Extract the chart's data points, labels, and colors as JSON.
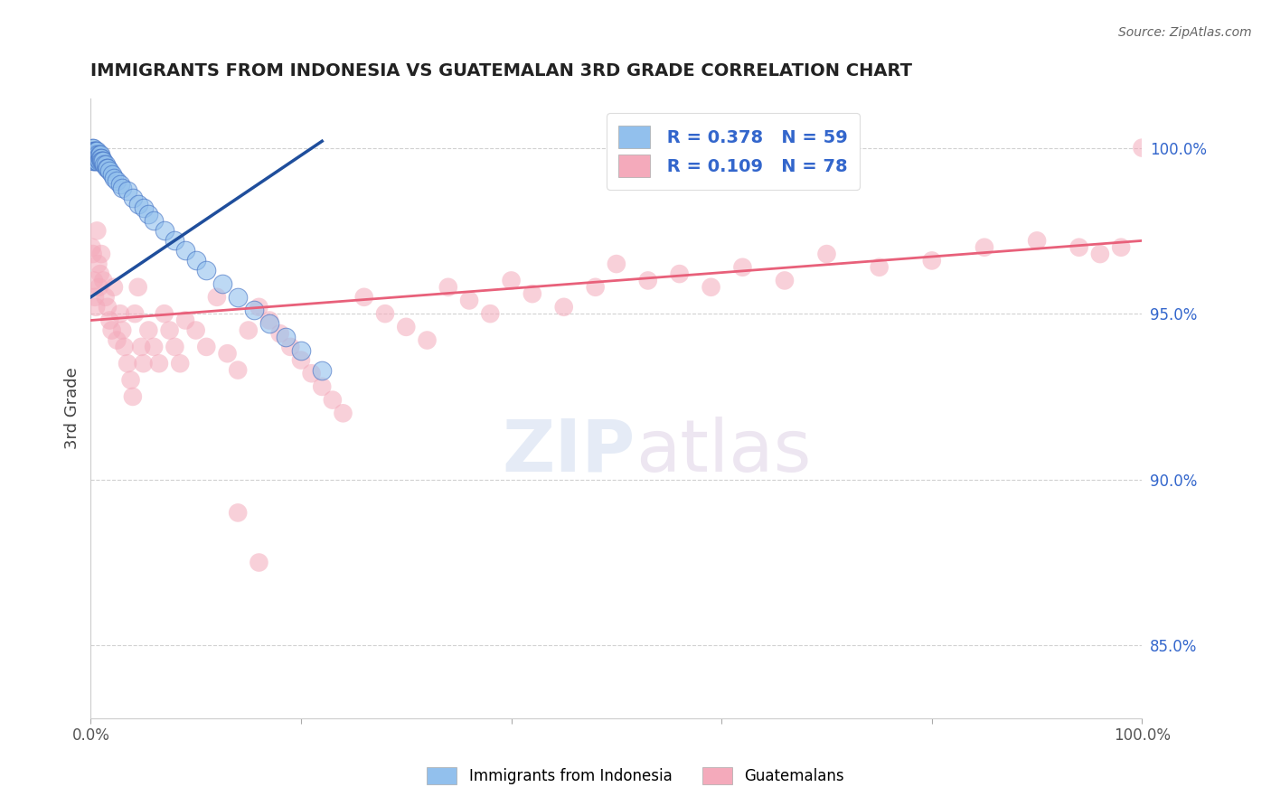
{
  "title": "IMMIGRANTS FROM INDONESIA VS GUATEMALAN 3RD GRADE CORRELATION CHART",
  "source": "Source: ZipAtlas.com",
  "ylabel": "3rd Grade",
  "xlim": [
    0,
    1.0
  ],
  "ylim": [
    0.828,
    1.015
  ],
  "xticks": [
    0.0,
    0.2,
    0.4,
    0.6,
    0.8,
    1.0
  ],
  "xticklabels": [
    "0.0%",
    "",
    "",
    "",
    "",
    "100.0%"
  ],
  "yticks": [
    0.85,
    0.9,
    0.95,
    1.0
  ],
  "yticklabels": [
    "85.0%",
    "90.0%",
    "95.0%",
    "100.0%"
  ],
  "legend_r1": "R = 0.378",
  "legend_n1": "N = 59",
  "legend_r2": "R = 0.109",
  "legend_n2": "N = 78",
  "color_blue": "#92C0ED",
  "color_blue_dark": "#4472C4",
  "color_blue_line": "#1F4E9C",
  "color_pink": "#F4AABB",
  "color_pink_line": "#E8607A",
  "color_grid": "#CCCCCC",
  "color_legend_text": "#3366CC",
  "legend_label1": "Immigrants from Indonesia",
  "legend_label2": "Guatemalans",
  "indo_x": [
    0.001,
    0.001,
    0.001,
    0.002,
    0.002,
    0.002,
    0.002,
    0.002,
    0.003,
    0.003,
    0.003,
    0.003,
    0.004,
    0.004,
    0.004,
    0.005,
    0.005,
    0.005,
    0.006,
    0.006,
    0.006,
    0.007,
    0.007,
    0.008,
    0.008,
    0.009,
    0.009,
    0.01,
    0.01,
    0.011,
    0.012,
    0.013,
    0.014,
    0.015,
    0.016,
    0.018,
    0.02,
    0.022,
    0.025,
    0.028,
    0.03,
    0.035,
    0.04,
    0.045,
    0.05,
    0.055,
    0.06,
    0.07,
    0.08,
    0.09,
    0.1,
    0.11,
    0.125,
    0.14,
    0.155,
    0.17,
    0.185,
    0.2,
    0.22
  ],
  "indo_y": [
    0.998,
    0.997,
    1.0,
    0.999,
    0.998,
    0.997,
    0.996,
    1.0,
    0.999,
    0.998,
    0.997,
    0.996,
    0.999,
    0.998,
    0.997,
    0.999,
    0.998,
    0.996,
    0.999,
    0.997,
    0.996,
    0.998,
    0.997,
    0.998,
    0.996,
    0.998,
    0.997,
    0.997,
    0.996,
    0.996,
    0.996,
    0.995,
    0.995,
    0.994,
    0.994,
    0.993,
    0.992,
    0.991,
    0.99,
    0.989,
    0.988,
    0.987,
    0.985,
    0.983,
    0.982,
    0.98,
    0.978,
    0.975,
    0.972,
    0.969,
    0.966,
    0.963,
    0.959,
    0.955,
    0.951,
    0.947,
    0.943,
    0.939,
    0.933
  ],
  "guat_x": [
    0.001,
    0.002,
    0.003,
    0.004,
    0.005,
    0.006,
    0.007,
    0.008,
    0.009,
    0.01,
    0.012,
    0.014,
    0.016,
    0.018,
    0.02,
    0.022,
    0.025,
    0.028,
    0.03,
    0.032,
    0.035,
    0.038,
    0.04,
    0.042,
    0.045,
    0.048,
    0.05,
    0.055,
    0.06,
    0.065,
    0.07,
    0.075,
    0.08,
    0.085,
    0.09,
    0.1,
    0.11,
    0.12,
    0.13,
    0.14,
    0.15,
    0.16,
    0.17,
    0.18,
    0.19,
    0.2,
    0.21,
    0.22,
    0.23,
    0.24,
    0.26,
    0.28,
    0.3,
    0.32,
    0.34,
    0.36,
    0.38,
    0.4,
    0.42,
    0.45,
    0.48,
    0.5,
    0.53,
    0.56,
    0.59,
    0.62,
    0.66,
    0.7,
    0.75,
    0.8,
    0.85,
    0.9,
    0.94,
    0.96,
    0.98,
    1.0,
    0.14,
    0.16
  ],
  "guat_y": [
    0.97,
    0.968,
    0.96,
    0.955,
    0.952,
    0.975,
    0.965,
    0.958,
    0.962,
    0.968,
    0.96,
    0.955,
    0.952,
    0.948,
    0.945,
    0.958,
    0.942,
    0.95,
    0.945,
    0.94,
    0.935,
    0.93,
    0.925,
    0.95,
    0.958,
    0.94,
    0.935,
    0.945,
    0.94,
    0.935,
    0.95,
    0.945,
    0.94,
    0.935,
    0.948,
    0.945,
    0.94,
    0.955,
    0.938,
    0.933,
    0.945,
    0.952,
    0.948,
    0.944,
    0.94,
    0.936,
    0.932,
    0.928,
    0.924,
    0.92,
    0.955,
    0.95,
    0.946,
    0.942,
    0.958,
    0.954,
    0.95,
    0.96,
    0.956,
    0.952,
    0.958,
    0.965,
    0.96,
    0.962,
    0.958,
    0.964,
    0.96,
    0.968,
    0.964,
    0.966,
    0.97,
    0.972,
    0.97,
    0.968,
    0.97,
    1.0,
    0.89,
    0.875
  ],
  "blue_line_x": [
    0.0,
    0.22
  ],
  "blue_line_y": [
    0.955,
    1.002
  ],
  "pink_line_x": [
    0.0,
    1.0
  ],
  "pink_line_y": [
    0.948,
    0.972
  ]
}
